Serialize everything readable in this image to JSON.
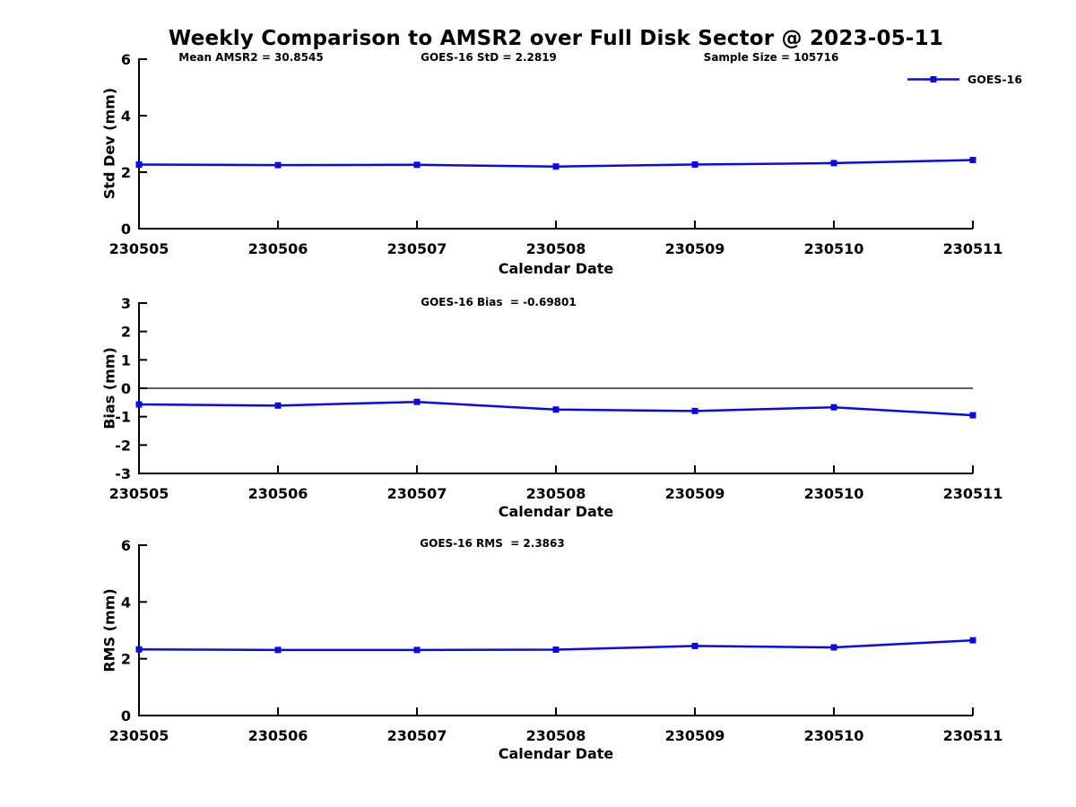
{
  "figure": {
    "title": "Weekly Comparison to AMSR2 over Full Disk Sector @ 2023-05-11",
    "legend": {
      "label": "GOES-16"
    }
  },
  "chart_data": [
    {
      "name": "stddev",
      "type": "line",
      "categories": [
        "230505",
        "230506",
        "230507",
        "230508",
        "230509",
        "230510",
        "230511"
      ],
      "series": [
        {
          "name": "GOES-16",
          "values": [
            2.27,
            2.25,
            2.26,
            2.2,
            2.27,
            2.32,
            2.43
          ]
        }
      ],
      "xlabel": "Calendar Date",
      "ylabel": "Std Dev (mm)",
      "ylim": [
        0,
        6
      ],
      "yticks": [
        0,
        2,
        4,
        6
      ],
      "grid": false,
      "zero_line": false,
      "line_color": "#0808f0",
      "marker": "square",
      "annotations": [
        "Mean AMSR2 = 30.8545",
        "GOES-16 StD = 2.2819",
        "Sample Size = 105716"
      ],
      "legend_position": "upper-right-outside"
    },
    {
      "name": "bias",
      "type": "line",
      "categories": [
        "230505",
        "230506",
        "230507",
        "230508",
        "230509",
        "230510",
        "230511"
      ],
      "series": [
        {
          "name": "GOES-16",
          "values": [
            -0.57,
            -0.61,
            -0.48,
            -0.75,
            -0.8,
            -0.67,
            -0.95
          ]
        }
      ],
      "xlabel": "Calendar Date",
      "ylabel": "Bias (mm)",
      "ylim": [
        -3,
        3
      ],
      "yticks": [
        3,
        2,
        1,
        0,
        -1,
        -2,
        -3
      ],
      "grid": false,
      "zero_line": true,
      "line_color": "#0808f0",
      "marker": "square",
      "annotations": [
        "GOES-16 Bias  = -0.69801"
      ]
    },
    {
      "name": "rms",
      "type": "line",
      "categories": [
        "230505",
        "230506",
        "230507",
        "230508",
        "230509",
        "230510",
        "230511"
      ],
      "series": [
        {
          "name": "GOES-16",
          "values": [
            2.33,
            2.31,
            2.31,
            2.32,
            2.45,
            2.4,
            2.65
          ]
        }
      ],
      "xlabel": "Calendar Date",
      "ylabel": "RMS (mm)",
      "ylim": [
        0,
        6
      ],
      "yticks": [
        0,
        2,
        4,
        6
      ],
      "grid": false,
      "zero_line": false,
      "line_color": "#0808f0",
      "marker": "square",
      "annotations": [
        "GOES-16 RMS  = 2.3863"
      ]
    }
  ]
}
